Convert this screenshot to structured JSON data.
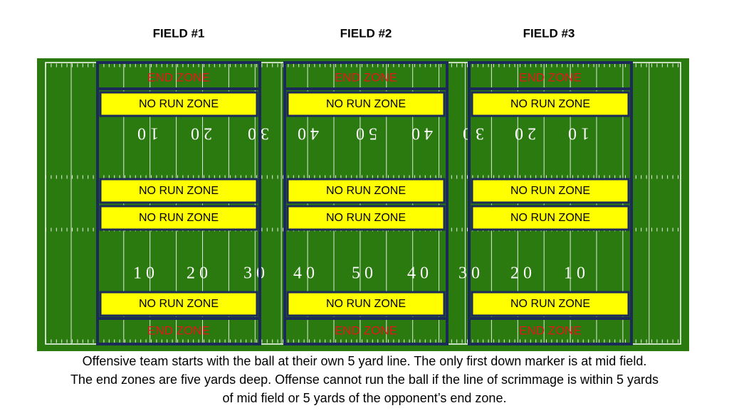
{
  "fields": [
    {
      "title": "FIELD #1",
      "end_zones": [
        "END ZONE",
        "END ZONE"
      ],
      "no_run_zones": [
        "NO RUN ZONE",
        "NO RUN ZONE",
        "NO RUN ZONE",
        "NO RUN ZONE"
      ]
    },
    {
      "title": "FIELD #2",
      "end_zones": [
        "END ZONE",
        "END ZONE"
      ],
      "no_run_zones": [
        "NO RUN ZONE",
        "NO RUN ZONE",
        "NO RUN ZONE",
        "NO RUN ZONE"
      ]
    },
    {
      "title": "FIELD #3",
      "end_zones": [
        "END ZONE",
        "END ZONE"
      ],
      "no_run_zones": [
        "NO RUN ZONE",
        "NO RUN ZONE",
        "NO RUN ZONE",
        "NO RUN ZONE"
      ]
    }
  ],
  "yard_numbers": [
    "10",
    "20",
    "30",
    "40",
    "50",
    "40",
    "30",
    "20",
    "10"
  ],
  "caption": [
    "Offensive team starts with the ball at their own 5 yard line. The only first down marker is at mid field.",
    "The end zones are five yards deep. Offense cannot run the ball if the line of scrimmage is within 5 yards",
    "of mid field or 5 yards of the opponent’s end zone."
  ]
}
